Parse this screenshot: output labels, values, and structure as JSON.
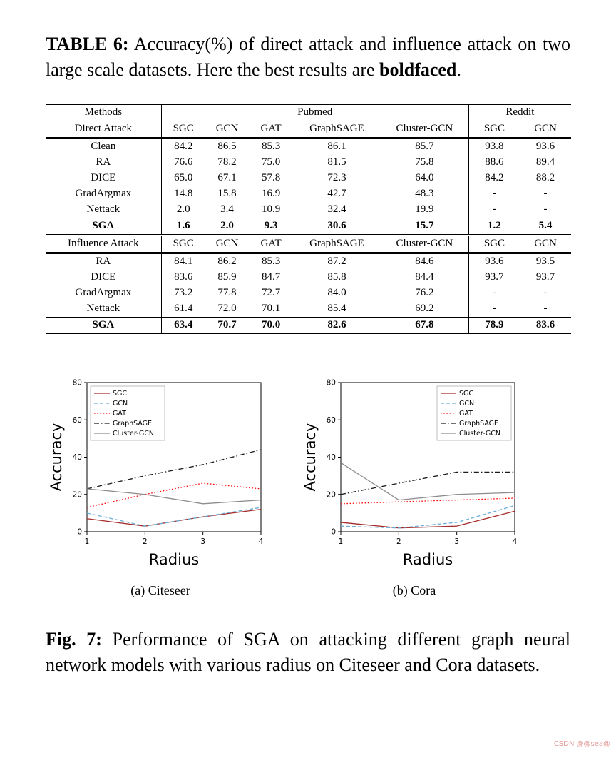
{
  "table6": {
    "caption_label": "TABLE 6:",
    "caption_body": " Accuracy(%) of direct attack and influence attack on two large scale datasets. Here the best results are ",
    "caption_bold": "boldfaced",
    "caption_end": ".",
    "group_headers": [
      "Methods",
      "Pubmed",
      "Reddit"
    ],
    "direct": {
      "header": [
        "Direct Attack",
        "SGC",
        "GCN",
        "GAT",
        "GraphSAGE",
        "Cluster-GCN",
        "SGC",
        "GCN"
      ],
      "rows": [
        {
          "label": "Clean",
          "values": [
            "84.2",
            "86.5",
            "85.3",
            "86.1",
            "85.7",
            "93.8",
            "93.6"
          ],
          "bold": false
        },
        {
          "label": "RA",
          "values": [
            "76.6",
            "78.2",
            "75.0",
            "81.5",
            "75.8",
            "88.6",
            "89.4"
          ],
          "bold": false
        },
        {
          "label": "DICE",
          "values": [
            "65.0",
            "67.1",
            "57.8",
            "72.3",
            "64.0",
            "84.2",
            "88.2"
          ],
          "bold": false
        },
        {
          "label": "GradArgmax",
          "values": [
            "14.8",
            "15.8",
            "16.9",
            "42.7",
            "48.3",
            "-",
            "-"
          ],
          "bold": false
        },
        {
          "label": "Nettack",
          "values": [
            "2.0",
            "3.4",
            "10.9",
            "32.4",
            "19.9",
            "-",
            "-"
          ],
          "bold": false
        }
      ],
      "sga_row": {
        "label": "SGA",
        "values": [
          "1.6",
          "2.0",
          "9.3",
          "30.6",
          "15.7",
          "1.2",
          "5.4"
        ],
        "bold": true
      }
    },
    "influence": {
      "header": [
        "Influence Attack",
        "SGC",
        "GCN",
        "GAT",
        "GraphSAGE",
        "Cluster-GCN",
        "SGC",
        "GCN"
      ],
      "rows": [
        {
          "label": "RA",
          "values": [
            "84.1",
            "86.2",
            "85.3",
            "87.2",
            "84.6",
            "93.6",
            "93.5"
          ],
          "bold": false
        },
        {
          "label": "DICE",
          "values": [
            "83.6",
            "85.9",
            "84.7",
            "85.8",
            "84.4",
            "93.7",
            "93.7"
          ],
          "bold": false
        },
        {
          "label": "GradArgmax",
          "values": [
            "73.2",
            "77.8",
            "72.7",
            "84.0",
            "76.2",
            "-",
            "-"
          ],
          "bold": false
        },
        {
          "label": "Nettack",
          "values": [
            "61.4",
            "72.0",
            "70.1",
            "85.4",
            "69.2",
            "-",
            "-"
          ],
          "bold": false
        }
      ],
      "sga_row": {
        "label": "SGA",
        "values": [
          "63.4",
          "70.7",
          "70.0",
          "82.6",
          "67.8",
          "78.9",
          "83.6"
        ],
        "bold": true
      }
    }
  },
  "figure7": {
    "caption_label": "Fig. 7:",
    "caption_body": " Performance of SGA on attacking different graph neural network models with various radius on Citeseer and Cora datasets.",
    "subcaptions": [
      "(a) Citeseer",
      "(b) Cora"
    ]
  },
  "chart_data": [
    {
      "type": "line",
      "title": "(a) Citeseer",
      "xlabel": "Radius",
      "ylabel": "Accuracy",
      "x": [
        1,
        2,
        3,
        4
      ],
      "xlim": [
        1,
        4
      ],
      "ylim": [
        0,
        80
      ],
      "xticks": [
        1,
        2,
        3,
        4
      ],
      "yticks": [
        0,
        20,
        40,
        60,
        80
      ],
      "grid": false,
      "legend_position": "upper left",
      "series": [
        {
          "name": "SGC",
          "values": [
            7,
            3,
            8,
            12
          ],
          "color": "#a52a2a",
          "dash": "solid"
        },
        {
          "name": "GCN",
          "values": [
            10,
            3,
            8,
            13
          ],
          "color": "#6aaed6",
          "dash": "dashed"
        },
        {
          "name": "GAT",
          "values": [
            13,
            20,
            26,
            23
          ],
          "color": "#ff0000",
          "dash": "dotted"
        },
        {
          "name": "GraphSAGE",
          "values": [
            23,
            30,
            36,
            44
          ],
          "color": "#1a1a1a",
          "dash": "dashdot"
        },
        {
          "name": "Cluster-GCN",
          "values": [
            23,
            20,
            15,
            17
          ],
          "color": "#8c8c8c",
          "dash": "solid"
        }
      ]
    },
    {
      "type": "line",
      "title": "(b) Cora",
      "xlabel": "Radius",
      "ylabel": "Accuracy",
      "x": [
        1,
        2,
        3,
        4
      ],
      "xlim": [
        1,
        4
      ],
      "ylim": [
        0,
        80
      ],
      "xticks": [
        1,
        2,
        3,
        4
      ],
      "yticks": [
        0,
        20,
        40,
        60,
        80
      ],
      "grid": false,
      "legend_position": "upper right",
      "series": [
        {
          "name": "SGC",
          "values": [
            5,
            2,
            3,
            11
          ],
          "color": "#a52a2a",
          "dash": "solid"
        },
        {
          "name": "GCN",
          "values": [
            3,
            2,
            5,
            14
          ],
          "color": "#6aaed6",
          "dash": "dashed"
        },
        {
          "name": "GAT",
          "values": [
            15,
            16,
            17,
            18
          ],
          "color": "#ff0000",
          "dash": "dotted"
        },
        {
          "name": "GraphSAGE",
          "values": [
            20,
            26,
            32,
            32
          ],
          "color": "#1a1a1a",
          "dash": "dashdot"
        },
        {
          "name": "Cluster-GCN",
          "values": [
            37,
            17,
            20,
            21
          ],
          "color": "#8c8c8c",
          "dash": "solid"
        }
      ]
    }
  ],
  "watermark": "CSDN @@sea@"
}
